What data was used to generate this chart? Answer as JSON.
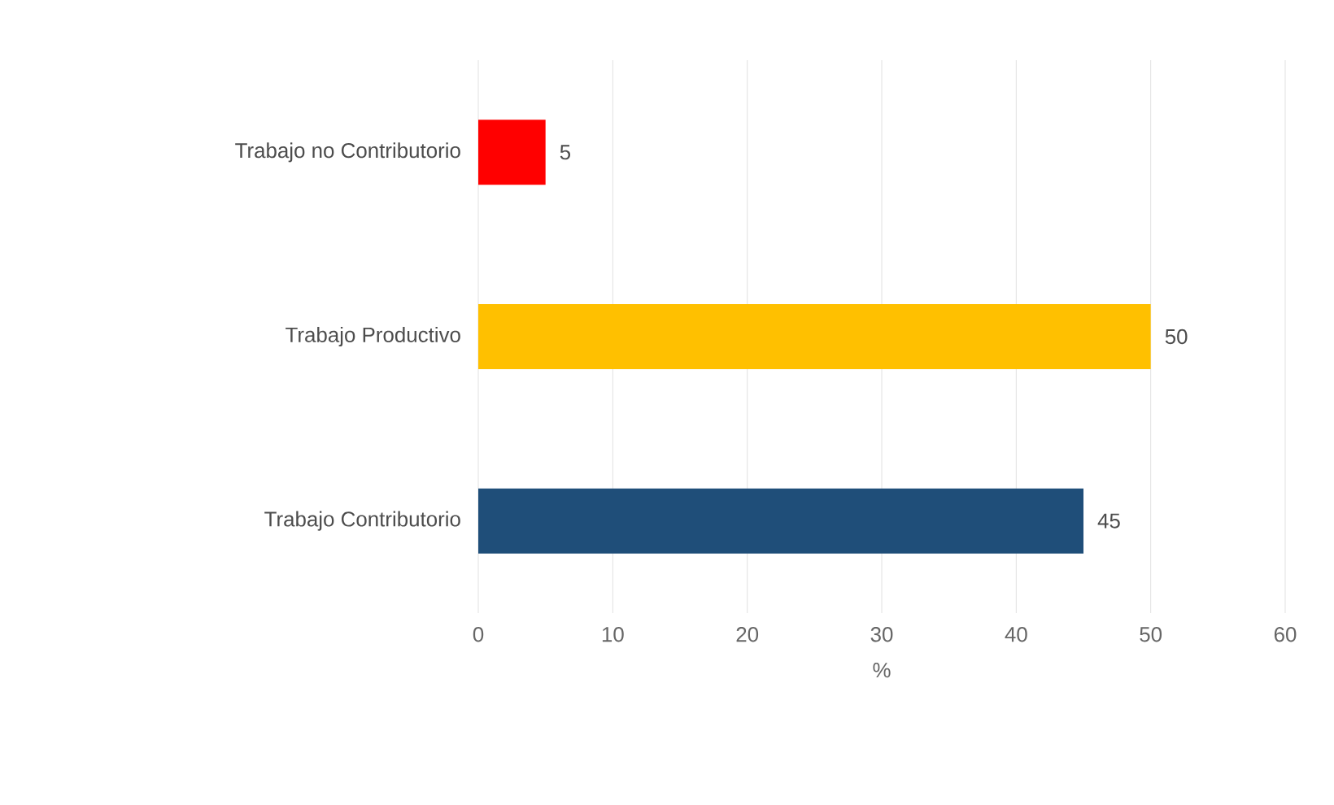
{
  "chart_data": {
    "type": "bar",
    "orientation": "horizontal",
    "xlabel": "%",
    "categories": [
      "Trabajo no Contributorio",
      "Trabajo Productivo",
      "Trabajo Contributorio"
    ],
    "values": [
      5,
      50,
      45
    ],
    "colors": [
      "#ff0000",
      "#ffc000",
      "#1f4e79"
    ],
    "xlim": [
      0,
      60
    ],
    "xticks": [
      0,
      10,
      20,
      30,
      40,
      50,
      60
    ],
    "grid": "x",
    "data_labels": true
  }
}
